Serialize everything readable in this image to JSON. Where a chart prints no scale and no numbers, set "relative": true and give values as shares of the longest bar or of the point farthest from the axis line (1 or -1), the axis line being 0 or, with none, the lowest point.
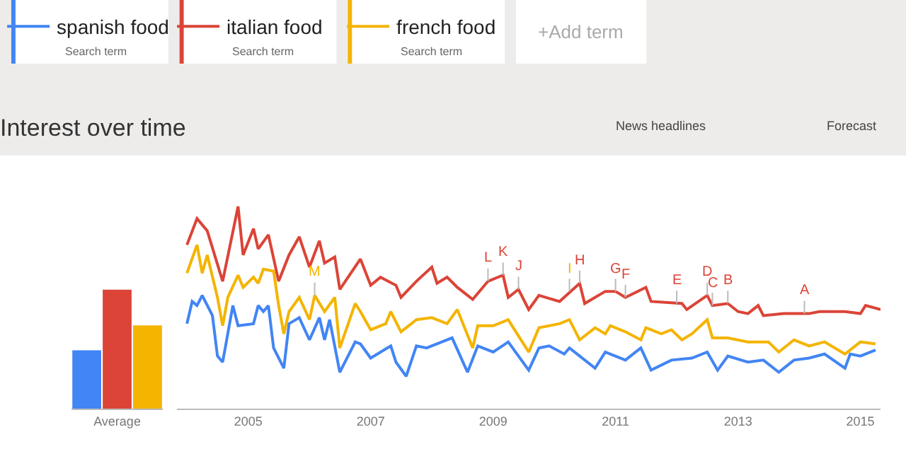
{
  "chart_data": [
    {
      "type": "bar",
      "relative": true,
      "categories": [
        "Average"
      ],
      "series": [
        {
          "color": "#4285f4",
          "values": [
            0.49
          ]
        },
        {
          "color": "#db4437",
          "values": [
            1
          ]
        },
        {
          "color": "#f4b400",
          "values": [
            0.7
          ]
        }
      ]
    },
    {
      "type": "line",
      "relative": true,
      "title": "Interest over time",
      "legend": "top left",
      "xlim": [
        "2003-11",
        "2015-05"
      ],
      "xticks": [
        {
          "value": "2005-01",
          "label": "2005"
        },
        {
          "value": "2007-01",
          "label": "2007"
        },
        {
          "value": "2009-01",
          "label": "2009"
        },
        {
          "value": "2011-01",
          "label": "2011"
        },
        {
          "value": "2013-01",
          "label": "2013"
        },
        {
          "value": "2015-01",
          "label": "2015"
        }
      ],
      "series": [
        {
          "name": "spanish food",
          "color": "#4285f4",
          "x": [
            "2004-01",
            "2004-02",
            "2004-03",
            "2004-04",
            "2004-06",
            "2004-07",
            "2004-08",
            "2004-10",
            "2004-11",
            "2005-02",
            "2005-03",
            "2005-04",
            "2005-05",
            "2005-06",
            "2005-08",
            "2005-09",
            "2005-11",
            "2006-01",
            "2006-03",
            "2006-04",
            "2006-05",
            "2006-07",
            "2006-10",
            "2006-11",
            "2007-01",
            "2007-05",
            "2007-06",
            "2007-08",
            "2007-10",
            "2007-12",
            "2008-03",
            "2008-05",
            "2008-08",
            "2008-10",
            "2009-01",
            "2009-04",
            "2009-08",
            "2009-10",
            "2009-12",
            "2010-03",
            "2010-04",
            "2010-06",
            "2010-09",
            "2010-11",
            "2010-12",
            "2011-03",
            "2011-06",
            "2011-08",
            "2011-12",
            "2012-04",
            "2012-07",
            "2012-09",
            "2012-11",
            "2013-03",
            "2013-06",
            "2013-09",
            "2013-12",
            "2014-03",
            "2014-06",
            "2014-10",
            "2014-11",
            "2015-01",
            "2015-04"
          ],
          "values": [
            0.42,
            0.53,
            0.51,
            0.56,
            0.46,
            0.26,
            0.23,
            0.51,
            0.41,
            0.42,
            0.51,
            0.48,
            0.51,
            0.3,
            0.2,
            0.42,
            0.45,
            0.34,
            0.45,
            0.34,
            0.44,
            0.18,
            0.33,
            0.32,
            0.25,
            0.31,
            0.23,
            0.16,
            0.31,
            0.3,
            0.33,
            0.35,
            0.18,
            0.31,
            0.28,
            0.33,
            0.19,
            0.3,
            0.31,
            0.27,
            0.3,
            0.26,
            0.2,
            0.28,
            0.27,
            0.24,
            0.3,
            0.19,
            0.24,
            0.25,
            0.28,
            0.19,
            0.26,
            0.23,
            0.24,
            0.18,
            0.24,
            0.25,
            0.27,
            0.2,
            0.27,
            0.26,
            0.29
          ]
        },
        {
          "name": "italian food",
          "color": "#db4437",
          "x": [
            "2004-01",
            "2004-03",
            "2004-05",
            "2004-08",
            "2004-11",
            "2004-12",
            "2005-02",
            "2005-03",
            "2005-05",
            "2005-07",
            "2005-09",
            "2005-11",
            "2006-01",
            "2006-03",
            "2006-04",
            "2006-06",
            "2006-07",
            "2006-11",
            "2007-01",
            "2007-03",
            "2007-06",
            "2007-07",
            "2007-10",
            "2008-01",
            "2008-02",
            "2008-04",
            "2008-06",
            "2008-09",
            "2008-12",
            "2009-03",
            "2009-04",
            "2009-06",
            "2009-08",
            "2009-10",
            "2010-02",
            "2010-06",
            "2010-07",
            "2010-11",
            "2011-01",
            "2011-03",
            "2011-07",
            "2011-08",
            "2012-02",
            "2012-03",
            "2012-07",
            "2012-08",
            "2012-11",
            "2013-01",
            "2013-03",
            "2013-05",
            "2013-06",
            "2013-10",
            "2014-03",
            "2014-05",
            "2014-10",
            "2015-01",
            "2015-02",
            "2015-05"
          ],
          "values": [
            0.81,
            0.94,
            0.88,
            0.63,
            1.0,
            0.76,
            0.89,
            0.79,
            0.86,
            0.63,
            0.76,
            0.85,
            0.7,
            0.83,
            0.72,
            0.75,
            0.59,
            0.74,
            0.61,
            0.65,
            0.61,
            0.55,
            0.63,
            0.7,
            0.62,
            0.65,
            0.6,
            0.54,
            0.63,
            0.66,
            0.55,
            0.59,
            0.49,
            0.56,
            0.53,
            0.62,
            0.52,
            0.58,
            0.58,
            0.55,
            0.6,
            0.53,
            0.52,
            0.49,
            0.56,
            0.51,
            0.52,
            0.48,
            0.47,
            0.51,
            0.46,
            0.47,
            0.47,
            0.48,
            0.48,
            0.47,
            0.51,
            0.49
          ]
        },
        {
          "name": "french food",
          "color": "#f4b400",
          "x": [
            "2004-01",
            "2004-03",
            "2004-04",
            "2004-05",
            "2004-07",
            "2004-08",
            "2004-09",
            "2004-11",
            "2004-12",
            "2005-02",
            "2005-03",
            "2005-04",
            "2005-06",
            "2005-07",
            "2005-08",
            "2005-09",
            "2005-11",
            "2006-01",
            "2006-02",
            "2006-04",
            "2006-06",
            "2006-07",
            "2006-10",
            "2006-11",
            "2007-01",
            "2007-04",
            "2007-05",
            "2007-07",
            "2007-10",
            "2008-01",
            "2008-04",
            "2008-06",
            "2008-09",
            "2008-10",
            "2009-01",
            "2009-04",
            "2009-05",
            "2009-08",
            "2009-10",
            "2010-02",
            "2010-04",
            "2010-06",
            "2010-09",
            "2010-11",
            "2010-12",
            "2011-03",
            "2011-06",
            "2011-07",
            "2011-10",
            "2011-12",
            "2012-02",
            "2012-04",
            "2012-07",
            "2012-08",
            "2012-11",
            "2013-03",
            "2013-07",
            "2013-09",
            "2013-12",
            "2014-03",
            "2014-06",
            "2014-10",
            "2015-01",
            "2015-04"
          ],
          "values": [
            0.67,
            0.81,
            0.67,
            0.76,
            0.55,
            0.41,
            0.55,
            0.66,
            0.6,
            0.65,
            0.62,
            0.69,
            0.68,
            0.51,
            0.37,
            0.48,
            0.55,
            0.44,
            0.56,
            0.48,
            0.55,
            0.3,
            0.52,
            0.48,
            0.39,
            0.42,
            0.48,
            0.38,
            0.44,
            0.45,
            0.42,
            0.49,
            0.3,
            0.41,
            0.41,
            0.44,
            0.4,
            0.28,
            0.4,
            0.42,
            0.44,
            0.34,
            0.4,
            0.37,
            0.41,
            0.38,
            0.34,
            0.4,
            0.37,
            0.39,
            0.34,
            0.37,
            0.44,
            0.35,
            0.35,
            0.33,
            0.33,
            0.28,
            0.34,
            0.31,
            0.33,
            0.27,
            0.33,
            0.32
          ]
        }
      ],
      "annotations": [
        "Search term",
        "Search term",
        "Search term",
        "+Add term",
        "News headlines",
        "Forecast",
        {
          "text": "M",
          "x": "2006-02",
          "y": 0.56
        },
        {
          "text": "L",
          "x": "2008-12",
          "y": 0.63
        },
        {
          "text": "K",
          "x": "2009-03",
          "y": 0.66
        },
        {
          "text": "J",
          "x": "2009-06",
          "y": 0.59
        },
        {
          "text": "I",
          "x": "2010-04",
          "y": 0.58
        },
        {
          "text": "H",
          "x": "2010-06",
          "y": 0.62
        },
        {
          "text": "G",
          "x": "2011-01",
          "y": 0.58
        },
        {
          "text": "F",
          "x": "2011-03",
          "y": 0.55
        },
        {
          "text": "E",
          "x": "2012-01",
          "y": 0.52
        },
        {
          "text": "D",
          "x": "2012-07",
          "y": 0.56
        },
        {
          "text": "C",
          "x": "2012-08",
          "y": 0.51
        },
        {
          "text": "B",
          "x": "2012-11",
          "y": 0.52
        },
        {
          "text": "A",
          "x": "2014-02",
          "y": 0.47
        }
      ]
    }
  ]
}
